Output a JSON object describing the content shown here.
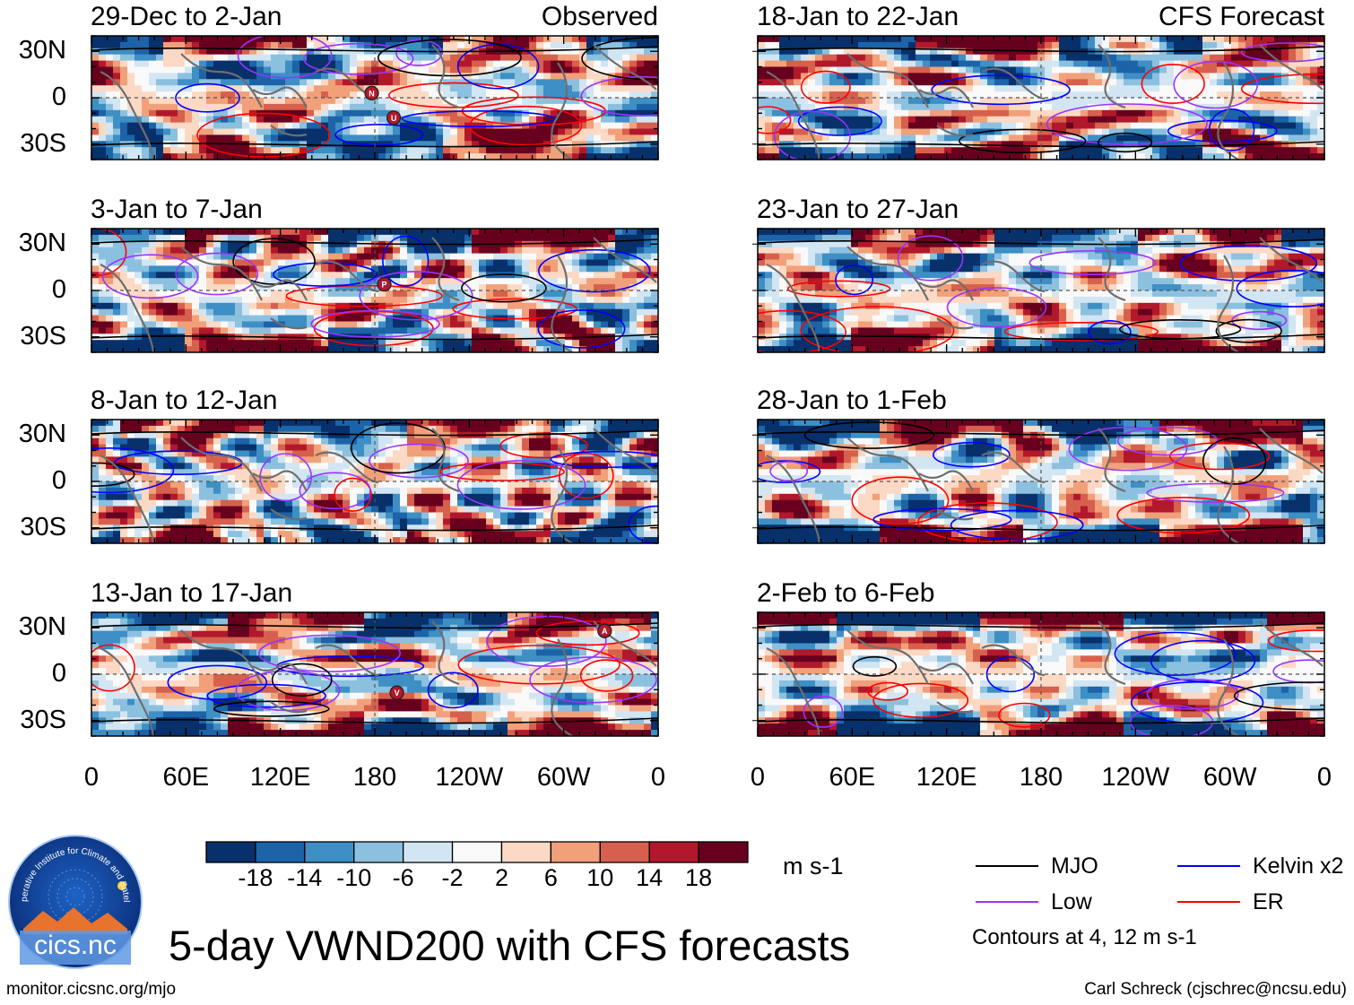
{
  "chart_data": {
    "type": "heatmap",
    "title": "5-day VWND200 with CFS forecasts",
    "variable": "VWND200",
    "units": "m s-1",
    "column_labels": [
      "Observed",
      "CFS Forecast"
    ],
    "y_ticks": [
      "30N",
      "0",
      "30S"
    ],
    "x_ticks": [
      "0",
      "60E",
      "120E",
      "180",
      "120W",
      "60W",
      "0"
    ],
    "lat_range": [
      -40,
      40
    ],
    "lon_range": [
      0,
      360
    ],
    "colorbar": {
      "ticks": [
        "-18",
        "-14",
        "-10",
        "-6",
        "-2",
        "2",
        "6",
        "10",
        "14",
        "18"
      ],
      "colors": [
        "#08306b",
        "#1c63a8",
        "#3d8fc4",
        "#8cc0df",
        "#d2e5f2",
        "#f9f9f9",
        "#fcd9c4",
        "#f1a07a",
        "#d6604d",
        "#b2182b",
        "#67001f"
      ]
    },
    "panels": [
      {
        "id": "p1",
        "col": "Observed",
        "title": "29-Dec to 2-Jan",
        "label": "Observed",
        "seed": 11,
        "markers": [
          {
            "letter": "N",
            "lon": 178,
            "lat": 3
          },
          {
            "letter": "U",
            "lon": 192,
            "lat": -13
          }
        ]
      },
      {
        "id": "p2",
        "col": "Observed",
        "title": "3-Jan to 7-Jan",
        "label": "",
        "seed": 23,
        "markers": [
          {
            "letter": "P",
            "lon": 186,
            "lat": 4
          }
        ]
      },
      {
        "id": "p3",
        "col": "Observed",
        "title": "8-Jan to 12-Jan",
        "label": "",
        "seed": 37,
        "markers": []
      },
      {
        "id": "p4",
        "col": "Observed",
        "title": "13-Jan to 17-Jan",
        "label": "",
        "seed": 41,
        "markers": [
          {
            "letter": "A",
            "lon": 326,
            "lat": 28
          },
          {
            "letter": "V",
            "lon": 194,
            "lat": -12
          }
        ]
      },
      {
        "id": "p5",
        "col": "CFS Forecast",
        "title": "18-Jan to 22-Jan",
        "label": "CFS Forecast",
        "seed": 53,
        "markers": []
      },
      {
        "id": "p6",
        "col": "CFS Forecast",
        "title": "23-Jan to 27-Jan",
        "label": "",
        "seed": 67,
        "markers": []
      },
      {
        "id": "p7",
        "col": "CFS Forecast",
        "title": "28-Jan to 1-Feb",
        "label": "",
        "seed": 79,
        "markers": []
      },
      {
        "id": "p8",
        "col": "CFS Forecast",
        "title": "2-Feb to 6-Feb",
        "label": "",
        "seed": 83,
        "markers": []
      }
    ],
    "legend": [
      {
        "name": "MJO",
        "color": "#000000"
      },
      {
        "name": "Kelvin x2",
        "color": "#0000ff"
      },
      {
        "name": "Low",
        "color": "#9933ff"
      },
      {
        "name": "ER",
        "color": "#ff0000"
      }
    ],
    "contour_note": "Contours at 4, 12 m s-1"
  },
  "logo": {
    "text": "cics.nc",
    "ring_text": "Cooperative Institute for Climate and Satellites"
  },
  "footer": {
    "url": "monitor.cicsnc.org/mjo",
    "credit": "Carl Schreck (cjschrec@ncsu.edu)"
  }
}
